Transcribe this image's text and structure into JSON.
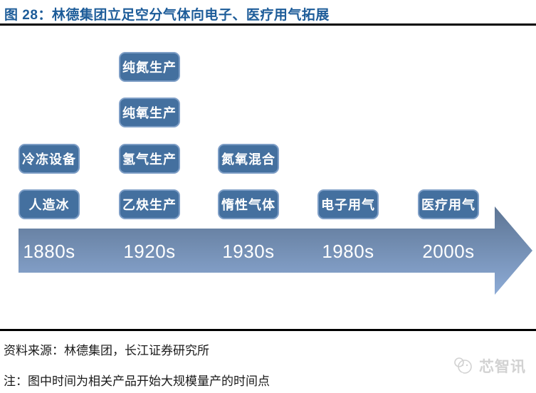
{
  "header": {
    "title": "图 28：林德集团立足空分气体向电子、医疗用气拓展"
  },
  "chart_data": {
    "type": "table",
    "title": "林德集团立足空分气体向电子、医疗用气拓展",
    "eras": [
      {
        "year": "1880s",
        "products": [
          "冷冻设备",
          "人造冰"
        ]
      },
      {
        "year": "1920s",
        "products": [
          "纯氮生产",
          "纯氧生产",
          "氢气生产",
          "乙炔生产"
        ]
      },
      {
        "year": "1930s",
        "products": [
          "氮氧混合",
          "惰性气体"
        ]
      },
      {
        "year": "1980s",
        "products": [
          "电子用气"
        ]
      },
      {
        "year": "2000s",
        "products": [
          "医疗用气"
        ]
      }
    ],
    "layout_hint": "horizontal timeline arrow pointing right, product boxes stacked above each era year"
  },
  "colors": {
    "title": "#1d5c99",
    "box_fill": "#44709f",
    "box_border": "#7e9ec6",
    "arrow_gradient_top": "#5d7594",
    "arrow_gradient_bottom": "#8dabd6"
  },
  "footer": {
    "source": "资料来源：林德集团，长江证券研究所",
    "note": "注：图中时间为相关产品开始大规模量产的时间点",
    "watermark": "芯智讯"
  }
}
